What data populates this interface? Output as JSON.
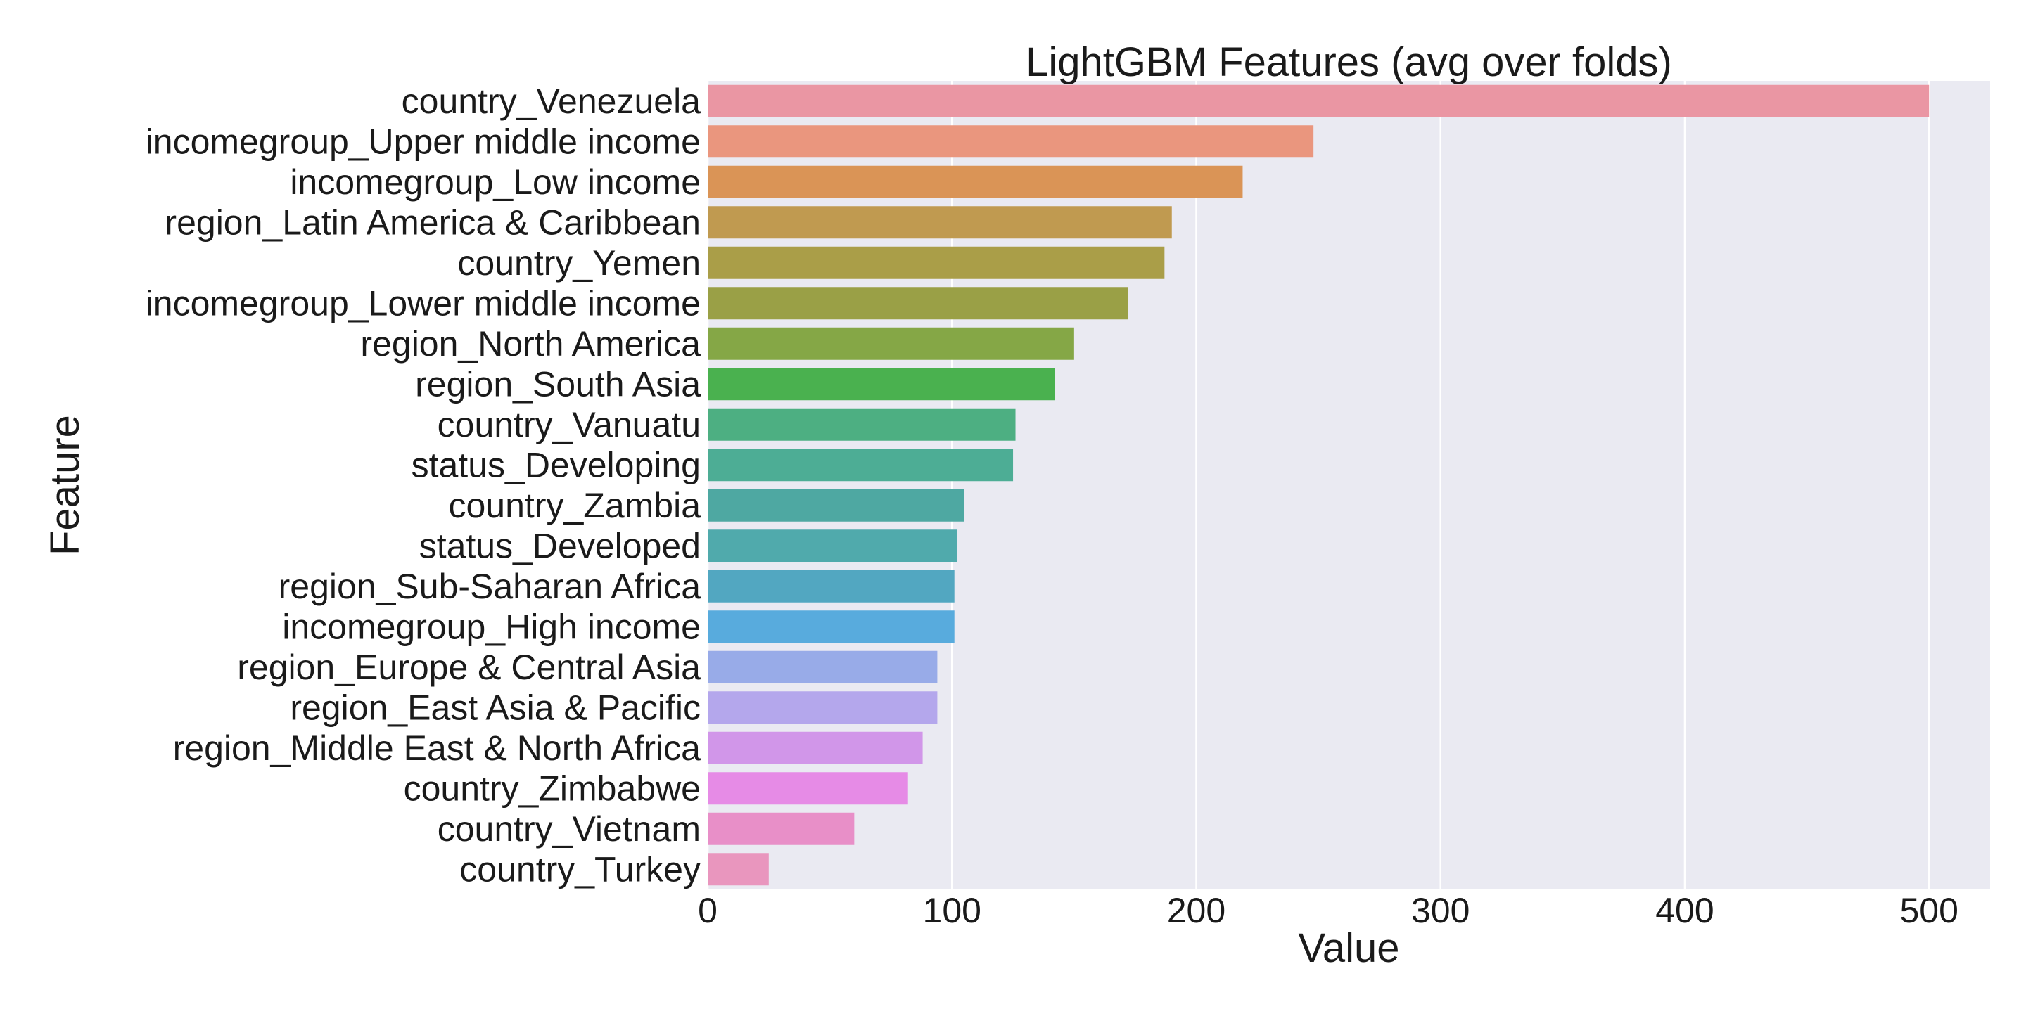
{
  "chart_data": {
    "type": "bar",
    "orientation": "horizontal",
    "title": "LightGBM Features (avg over folds)",
    "xlabel": "Value",
    "ylabel": "Feature",
    "xlim": [
      0,
      525
    ],
    "xticks": [
      0,
      100,
      200,
      300,
      400,
      500
    ],
    "grid": true,
    "legend": "none",
    "background_color": "#eaeaf2",
    "categories": [
      "country_Venezuela",
      "incomegroup_Upper middle income",
      "incomegroup_Low income",
      "region_Latin America & Caribbean",
      "country_Yemen",
      "incomegroup_Lower middle income",
      "region_North America",
      "region_South Asia",
      "country_Vanuatu",
      "status_Developing",
      "country_Zambia",
      "status_Developed",
      "region_Sub-Saharan Africa",
      "incomegroup_High income",
      "region_Europe & Central Asia",
      "region_East Asia & Pacific",
      "region_Middle East & North Africa",
      "country_Zimbabwe",
      "country_Vietnam",
      "country_Turkey"
    ],
    "values": [
      500,
      248,
      219,
      190,
      187,
      172,
      150,
      142,
      126,
      125,
      105,
      102,
      101,
      101,
      94,
      94,
      88,
      82,
      60,
      25
    ],
    "colors": [
      "#ea96a3",
      "#ea967e",
      "#da9456",
      "#c09a50",
      "#aa9e48",
      "#9aa046",
      "#85a746",
      "#4ab14f",
      "#4daf82",
      "#4dad95",
      "#4ea8a2",
      "#50aaac",
      "#52a7c1",
      "#58abdd",
      "#98abe8",
      "#b4a7ec",
      "#d196e9",
      "#e68be6",
      "#e88fc8",
      "#e996be"
    ]
  }
}
